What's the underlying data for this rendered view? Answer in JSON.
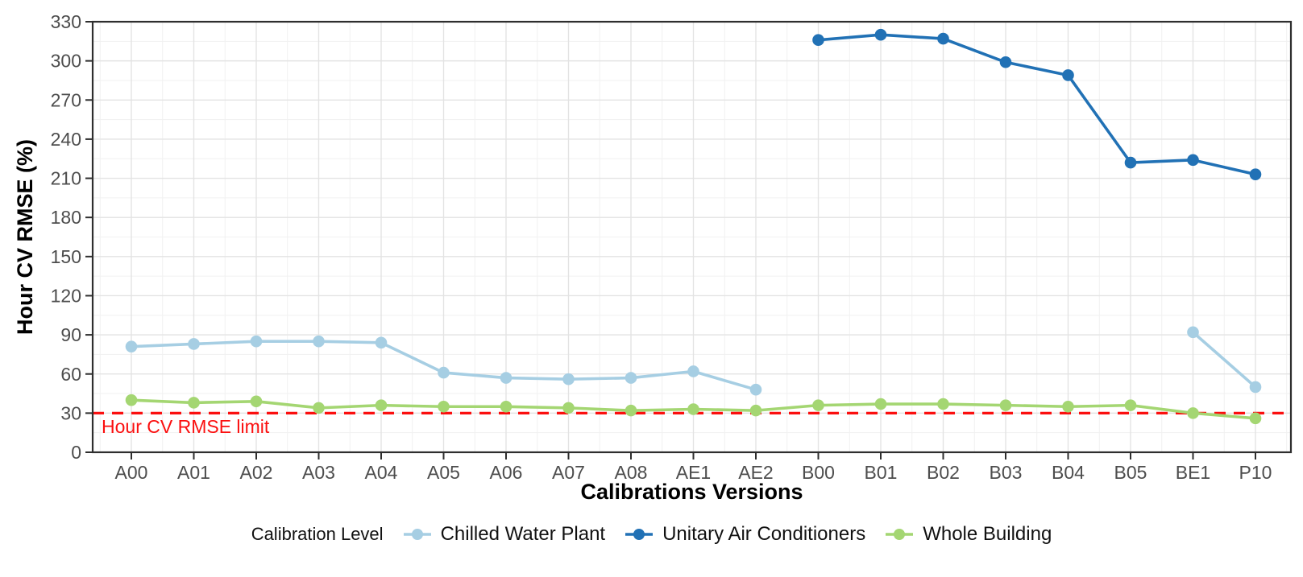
{
  "axes": {
    "y_title": "Hour CV RMSE (%)",
    "x_title": "Calibrations Versions"
  },
  "legend": {
    "title": "Calibration Level"
  },
  "chart_data": {
    "type": "line",
    "title": "",
    "xlabel": "Calibrations Versions",
    "ylabel": "Hour CV RMSE (%)",
    "grid": "on",
    "legend_position": "bottom",
    "ylim": [
      0,
      330
    ],
    "y_ticks": [
      0,
      30,
      60,
      90,
      120,
      150,
      180,
      210,
      240,
      270,
      300,
      330
    ],
    "categories": [
      "A00",
      "A01",
      "A02",
      "A03",
      "A04",
      "A05",
      "A06",
      "A07",
      "A08",
      "AE1",
      "AE2",
      "B00",
      "B01",
      "B02",
      "B03",
      "B04",
      "B05",
      "BE1",
      "P10"
    ],
    "series": [
      {
        "name": "Chilled Water Plant",
        "color": "#a6cee3",
        "values": [
          81,
          83,
          85,
          85,
          84,
          61,
          57,
          56,
          57,
          62,
          48,
          null,
          null,
          null,
          null,
          null,
          null,
          92,
          50
        ]
      },
      {
        "name": "Unitary Air Conditioners",
        "color": "#2171b5",
        "values": [
          null,
          null,
          null,
          null,
          null,
          null,
          null,
          null,
          null,
          null,
          null,
          316,
          320,
          317,
          299,
          289,
          222,
          224,
          213
        ]
      },
      {
        "name": "Whole Building",
        "color": "#a4d672",
        "values": [
          40,
          38,
          39,
          34,
          36,
          35,
          35,
          34,
          32,
          33,
          32,
          36,
          37,
          37,
          36,
          35,
          36,
          30,
          26
        ]
      }
    ],
    "limit_line": {
      "value": 30,
      "color": "#fb0f0f",
      "label": "Hour CV RMSE limit",
      "style": "dashed"
    },
    "tick_label_color": "#4d4d4d"
  }
}
